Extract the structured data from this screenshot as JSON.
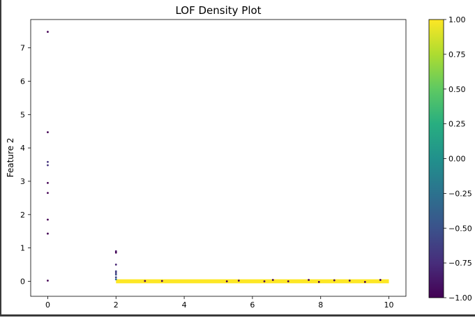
{
  "chart_data": {
    "type": "scatter",
    "title": "LOF Density Plot",
    "xlabel": "",
    "ylabel": "Feature 2",
    "xlim": [
      -0.5,
      10.5
    ],
    "ylim": [
      -0.45,
      7.85
    ],
    "x_ticks": [
      0,
      2,
      4,
      6,
      8,
      10
    ],
    "y_ticks": [
      0,
      1,
      2,
      3,
      4,
      5,
      6,
      7
    ],
    "grid": false,
    "colormap": "viridis",
    "colorbar": {
      "range": [
        -1.0,
        1.0
      ],
      "ticks": [
        "1.00",
        "0.75",
        "0.50",
        "0.25",
        "0.00",
        "−0.25",
        "−0.50",
        "−0.75",
        "−1.00"
      ],
      "tick_values": [
        1.0,
        0.75,
        0.5,
        0.25,
        0.0,
        -0.25,
        -0.5,
        -0.75,
        -1.0
      ]
    },
    "series": [
      {
        "points": [
          {
            "x": 0,
            "y": 7.48,
            "c": -1
          },
          {
            "x": 0,
            "y": 4.47,
            "c": -1
          },
          {
            "x": 0,
            "y": 3.58,
            "c": -0.7
          },
          {
            "x": 0,
            "y": 3.48,
            "c": -0.7
          },
          {
            "x": 0,
            "y": 2.95,
            "c": -1
          },
          {
            "x": 0,
            "y": 2.65,
            "c": -1
          },
          {
            "x": 0,
            "y": 1.85,
            "c": -1
          },
          {
            "x": 0,
            "y": 1.43,
            "c": -1
          },
          {
            "x": 0,
            "y": 0.02,
            "c": -1
          },
          {
            "x": 2,
            "y": 0.9,
            "c": -0.9
          },
          {
            "x": 2,
            "y": 0.86,
            "c": -1
          },
          {
            "x": 2,
            "y": 0.5,
            "c": -0.8
          },
          {
            "x": 2,
            "y": 0.3,
            "c": -0.6
          },
          {
            "x": 2,
            "y": 0.25,
            "c": -0.7
          },
          {
            "x": 2,
            "y": 0.2,
            "c": -0.5
          },
          {
            "x": 2,
            "y": 0.12,
            "c": -0.6
          },
          {
            "x": 2,
            "y": 0.06,
            "c": -0.3
          },
          {
            "x": 2.85,
            "y": 0.01,
            "c": -1
          },
          {
            "x": 3.35,
            "y": 0.01,
            "c": -1
          },
          {
            "x": 5.25,
            "y": 0.0,
            "c": -1
          },
          {
            "x": 5.6,
            "y": 0.02,
            "c": -1
          },
          {
            "x": 6.35,
            "y": 0.0,
            "c": -1
          },
          {
            "x": 6.6,
            "y": 0.04,
            "c": -1
          },
          {
            "x": 7.05,
            "y": 0.0,
            "c": -1
          },
          {
            "x": 7.65,
            "y": 0.04,
            "c": -1
          },
          {
            "x": 7.95,
            "y": -0.02,
            "c": -1
          },
          {
            "x": 8.4,
            "y": 0.03,
            "c": -1
          },
          {
            "x": 8.85,
            "y": 0.02,
            "c": -1
          },
          {
            "x": 9.3,
            "y": -0.02,
            "c": -1
          },
          {
            "x": 9.75,
            "y": 0.04,
            "c": -1
          }
        ]
      }
    ]
  }
}
